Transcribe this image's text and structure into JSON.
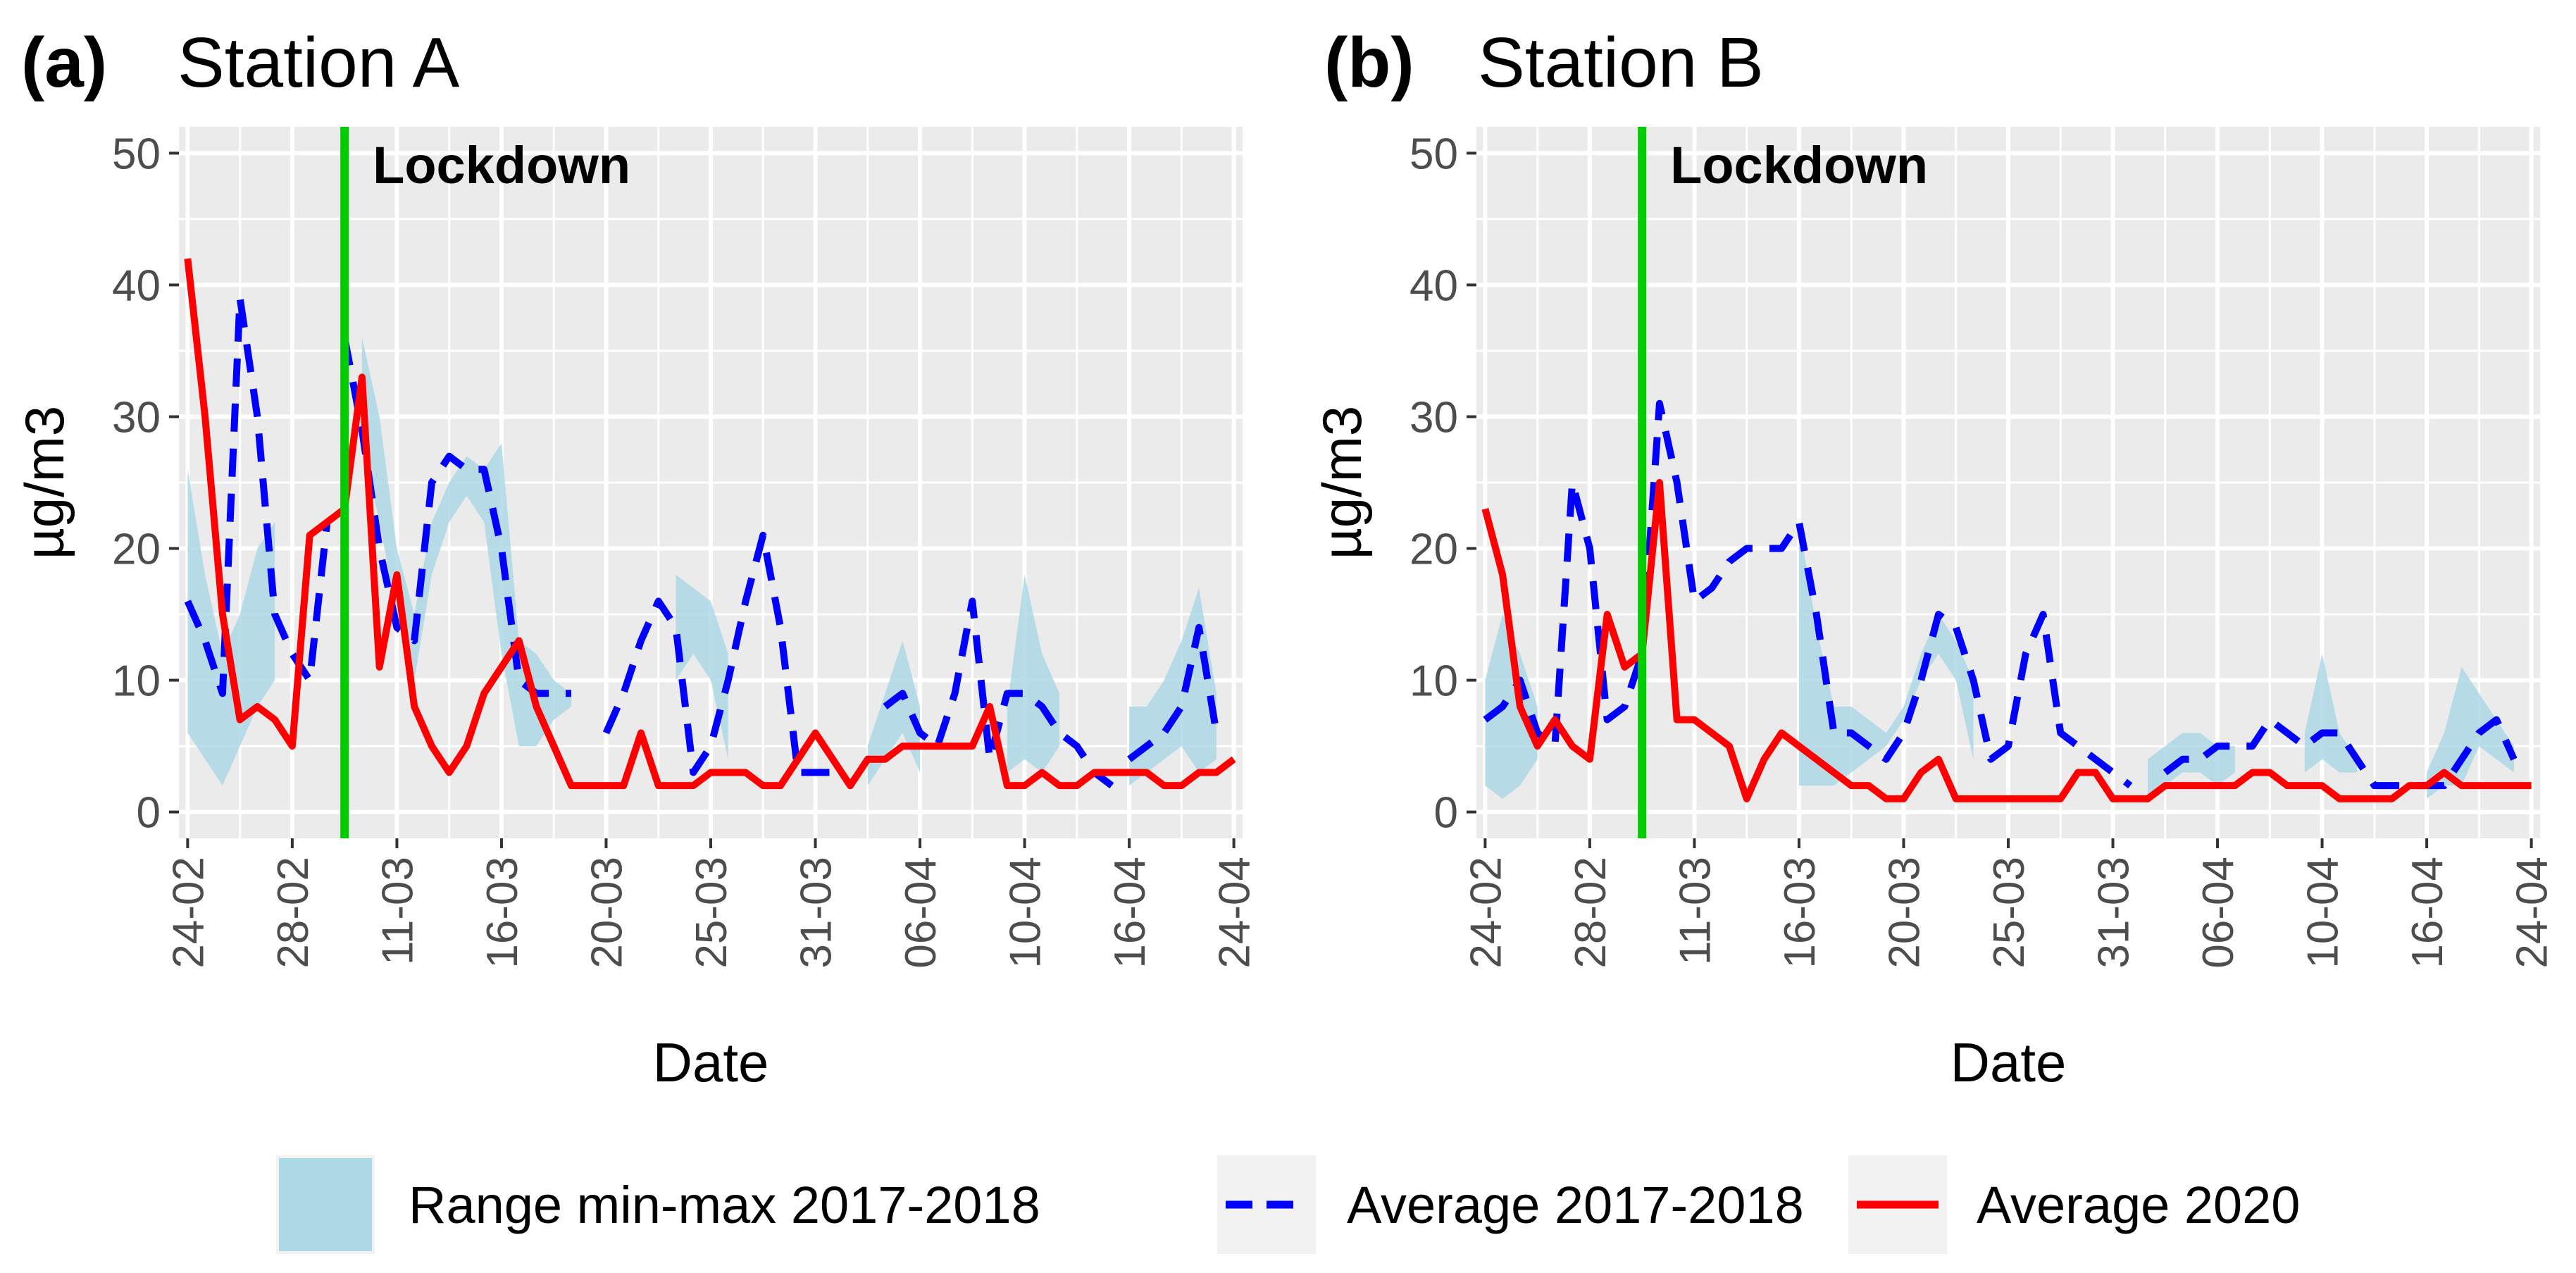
{
  "legend": {
    "items": [
      {
        "key": "range",
        "label": "Range min-max 2017-2018",
        "color": "#ADD8E6"
      },
      {
        "key": "avg1718",
        "label": "Average 2017-2018",
        "color": "#0000FF"
      },
      {
        "key": "avg2020",
        "label": "Average 2020",
        "color": "#FF0000"
      }
    ]
  },
  "chart_data": [
    {
      "type": "line",
      "tag": "(a)",
      "title": "Station A",
      "xlabel": "Date",
      "ylabel": "µg/m3",
      "ylim": [
        -2,
        52
      ],
      "yticks": [
        0,
        10,
        20,
        30,
        40,
        50
      ],
      "x_range_days": [
        -0.5,
        60.5
      ],
      "x_ticks": [
        {
          "day": 0,
          "label": "24-02"
        },
        {
          "day": 6,
          "label": "28-02"
        },
        {
          "day": 12,
          "label": "11-03"
        },
        {
          "day": 18,
          "label": "16-03"
        },
        {
          "day": 24,
          "label": "20-03"
        },
        {
          "day": 30,
          "label": "25-03"
        },
        {
          "day": 36,
          "label": "31-03"
        },
        {
          "day": 42,
          "label": "06-04"
        },
        {
          "day": 48,
          "label": "10-04"
        },
        {
          "day": 54,
          "label": "16-04"
        },
        {
          "day": 60,
          "label": "24-04"
        }
      ],
      "lockdown": {
        "day": 9,
        "label": "Lockdown",
        "color": "#00CC00"
      },
      "series": [
        {
          "name": "Range min-max 2017-2018",
          "kind": "ribbon",
          "color": "#ADD8E6",
          "segments": [
            {
              "days": [
                0,
                1,
                2,
                3,
                4,
                5
              ],
              "low": [
                6,
                4,
                2,
                5,
                8,
                10
              ],
              "high": [
                26,
                18,
                12,
                15,
                20,
                22
              ]
            },
            {
              "days": [
                10,
                11,
                12,
                13,
                14,
                15,
                16,
                17,
                18,
                19,
                20,
                21,
                22
              ],
              "low": [
                28,
                22,
                15,
                10,
                18,
                22,
                24,
                22,
                12,
                5,
                5,
                7,
                8
              ],
              "high": [
                36,
                30,
                20,
                15,
                22,
                25,
                27,
                26,
                28,
                13,
                12,
                10,
                9
              ]
            },
            {
              "days": [
                28,
                29,
                30,
                31
              ],
              "low": [
                10,
                12,
                10,
                4
              ],
              "high": [
                18,
                17,
                16,
                12
              ]
            },
            {
              "days": [
                39,
                40,
                41,
                42
              ],
              "low": [
                2,
                4,
                6,
                3
              ],
              "high": [
                5,
                9,
                13,
                8
              ]
            },
            {
              "days": [
                47,
                48,
                49,
                50
              ],
              "low": [
                3,
                4,
                3,
                5
              ],
              "high": [
                8,
                18,
                12,
                9
              ]
            },
            {
              "days": [
                54,
                55,
                56,
                57,
                58,
                59
              ],
              "low": [
                2,
                3,
                4,
                5,
                3,
                4
              ],
              "high": [
                8,
                8,
                10,
                13,
                17,
                9
              ]
            }
          ]
        },
        {
          "name": "Average 2017-2018",
          "kind": "line",
          "dashed": true,
          "color": "#0000FF",
          "segments": [
            {
              "days": [
                0,
                1,
                2,
                3,
                4,
                5,
                6,
                7,
                8
              ],
              "values": [
                16,
                13,
                9,
                39,
                30,
                15,
                12,
                10,
                22
              ]
            },
            {
              "days": [
                9,
                10,
                11,
                12,
                13,
                14,
                15,
                16,
                17,
                18,
                19,
                20,
                21,
                22
              ],
              "values": [
                36,
                29,
                20,
                14,
                13,
                25,
                27,
                26,
                26,
                20,
                10,
                9,
                9,
                9
              ]
            },
            {
              "days": [
                24,
                25,
                26,
                27,
                28,
                29,
                30,
                31,
                32,
                33,
                34,
                35,
                36,
                37
              ],
              "values": [
                6,
                9,
                13,
                16,
                14,
                3,
                5,
                10,
                16,
                21,
                14,
                3,
                3,
                3
              ]
            },
            {
              "days": [
                40,
                41,
                42,
                43,
                44,
                45,
                46,
                47,
                48,
                49,
                50,
                51,
                52,
                53
              ],
              "values": [
                8,
                9,
                6,
                5,
                9,
                16,
                4,
                9,
                9,
                8,
                6,
                5,
                3,
                2
              ]
            },
            {
              "days": [
                54,
                55,
                56,
                57,
                58,
                59
              ],
              "values": [
                4,
                5,
                6,
                8,
                14,
                6
              ]
            }
          ]
        },
        {
          "name": "Average 2020",
          "kind": "line",
          "dashed": false,
          "color": "#FF0000",
          "segments": [
            {
              "days": [
                0,
                1,
                2,
                3,
                4,
                5,
                6,
                7,
                8,
                9,
                10,
                11,
                12,
                13,
                14,
                15,
                16,
                17,
                18,
                19,
                20,
                21,
                22,
                23,
                24,
                25,
                26,
                27,
                28,
                29,
                30,
                31,
                32,
                33,
                34,
                35,
                36,
                37,
                38,
                39,
                40,
                41,
                42,
                43,
                44,
                45,
                46,
                47,
                48,
                49,
                50,
                51,
                52,
                53,
                54,
                55,
                56,
                57,
                58,
                59,
                60
              ],
              "values": [
                42,
                30,
                15,
                7,
                8,
                7,
                5,
                21,
                22,
                23,
                33,
                11,
                18,
                8,
                5,
                3,
                5,
                9,
                11,
                13,
                8,
                5,
                2,
                2,
                2,
                2,
                6,
                2,
                2,
                2,
                3,
                3,
                3,
                2,
                2,
                4,
                6,
                4,
                2,
                4,
                4,
                5,
                5,
                5,
                5,
                5,
                8,
                2,
                2,
                3,
                2,
                2,
                3,
                3,
                3,
                3,
                2,
                2,
                3,
                3,
                4
              ]
            }
          ]
        }
      ]
    },
    {
      "type": "line",
      "tag": "(b)",
      "title": "Station B",
      "xlabel": "Date",
      "ylabel": "µg/m3",
      "ylim": [
        -2,
        52
      ],
      "yticks": [
        0,
        10,
        20,
        30,
        40,
        50
      ],
      "x_range_days": [
        -0.5,
        60.5
      ],
      "x_ticks": [
        {
          "day": 0,
          "label": "24-02"
        },
        {
          "day": 6,
          "label": "28-02"
        },
        {
          "day": 12,
          "label": "11-03"
        },
        {
          "day": 18,
          "label": "16-03"
        },
        {
          "day": 24,
          "label": "20-03"
        },
        {
          "day": 30,
          "label": "25-03"
        },
        {
          "day": 36,
          "label": "31-03"
        },
        {
          "day": 42,
          "label": "06-04"
        },
        {
          "day": 48,
          "label": "10-04"
        },
        {
          "day": 54,
          "label": "16-04"
        },
        {
          "day": 60,
          "label": "24-04"
        }
      ],
      "lockdown": {
        "day": 9,
        "label": "Lockdown",
        "color": "#00CC00"
      },
      "series": [
        {
          "name": "Range min-max 2017-2018",
          "kind": "ribbon",
          "color": "#ADD8E6",
          "segments": [
            {
              "days": [
                0,
                1,
                2,
                3
              ],
              "low": [
                2,
                1,
                2,
                4
              ],
              "high": [
                10,
                15,
                12,
                8
              ]
            },
            {
              "days": [
                18,
                19,
                20,
                21,
                22,
                23,
                24,
                25,
                26,
                27,
                28
              ],
              "low": [
                2,
                2,
                2,
                3,
                4,
                5,
                7,
                10,
                12,
                10,
                4
              ],
              "high": [
                22,
                14,
                8,
                8,
                7,
                6,
                8,
                12,
                15,
                13,
                10
              ]
            },
            {
              "days": [
                38,
                39,
                40,
                41,
                42,
                43
              ],
              "low": [
                1,
                2,
                3,
                3,
                2,
                3
              ],
              "high": [
                4,
                5,
                6,
                6,
                5,
                5
              ]
            },
            {
              "days": [
                47,
                48,
                49,
                50
              ],
              "low": [
                3,
                4,
                3,
                3
              ],
              "high": [
                6,
                12,
                6,
                4
              ]
            },
            {
              "days": [
                54,
                55,
                56,
                57,
                58,
                59
              ],
              "low": [
                1,
                2,
                2,
                5,
                4,
                3
              ],
              "high": [
                3,
                6,
                11,
                9,
                7,
                5
              ]
            }
          ]
        },
        {
          "name": "Average 2017-2018",
          "kind": "line",
          "dashed": true,
          "color": "#0000FF",
          "segments": [
            {
              "days": [
                0,
                1,
                2,
                3,
                4,
                5,
                6,
                7,
                8,
                9,
                10,
                11,
                12,
                13,
                14,
                15,
                16,
                17,
                18,
                19,
                20,
                21,
                22,
                23,
                24,
                25,
                26,
                27,
                28,
                29,
                30,
                31,
                32,
                33,
                34,
                35,
                36,
                37
              ],
              "values": [
                7,
                8,
                10,
                6,
                5,
                25,
                20,
                7,
                8,
                12,
                31,
                25,
                16,
                17,
                19,
                20,
                20,
                20,
                22,
                15,
                6,
                6,
                5,
                4,
                6,
                10,
                15,
                14,
                10,
                4,
                5,
                12,
                15,
                6,
                5,
                4,
                3,
                2
              ]
            },
            {
              "days": [
                39,
                40,
                41,
                42,
                43,
                44,
                45,
                46,
                47,
                48,
                49,
                50,
                51,
                52,
                53,
                54,
                55,
                56,
                57,
                58,
                59
              ],
              "values": [
                3,
                4,
                4,
                5,
                5,
                5,
                7,
                6,
                5,
                6,
                6,
                4,
                2,
                2,
                2,
                2,
                2,
                4,
                6,
                7,
                4
              ]
            }
          ]
        },
        {
          "name": "Average 2020",
          "kind": "line",
          "dashed": false,
          "color": "#FF0000",
          "segments": [
            {
              "days": [
                0,
                1,
                2,
                3,
                4,
                5,
                6,
                7,
                8,
                9,
                10,
                11,
                12,
                13,
                14,
                15,
                16,
                17,
                18,
                19,
                20,
                21,
                22,
                23,
                24,
                25,
                26,
                27,
                28,
                29,
                30,
                31,
                32,
                33,
                34,
                35,
                36,
                37,
                38,
                39,
                40,
                41,
                42,
                43,
                44,
                45,
                46,
                47,
                48,
                49,
                50,
                51,
                52,
                53,
                54,
                55,
                56,
                57,
                58,
                59,
                60
              ],
              "values": [
                23,
                18,
                8,
                5,
                7,
                5,
                4,
                15,
                11,
                12,
                25,
                7,
                7,
                6,
                5,
                1,
                4,
                6,
                5,
                4,
                3,
                2,
                2,
                1,
                1,
                3,
                4,
                1,
                1,
                1,
                1,
                1,
                1,
                1,
                3,
                3,
                1,
                1,
                1,
                2,
                2,
                2,
                2,
                2,
                3,
                3,
                2,
                2,
                2,
                1,
                1,
                1,
                1,
                2,
                2,
                3,
                2,
                2,
                2,
                2,
                2
              ]
            }
          ]
        }
      ]
    }
  ]
}
